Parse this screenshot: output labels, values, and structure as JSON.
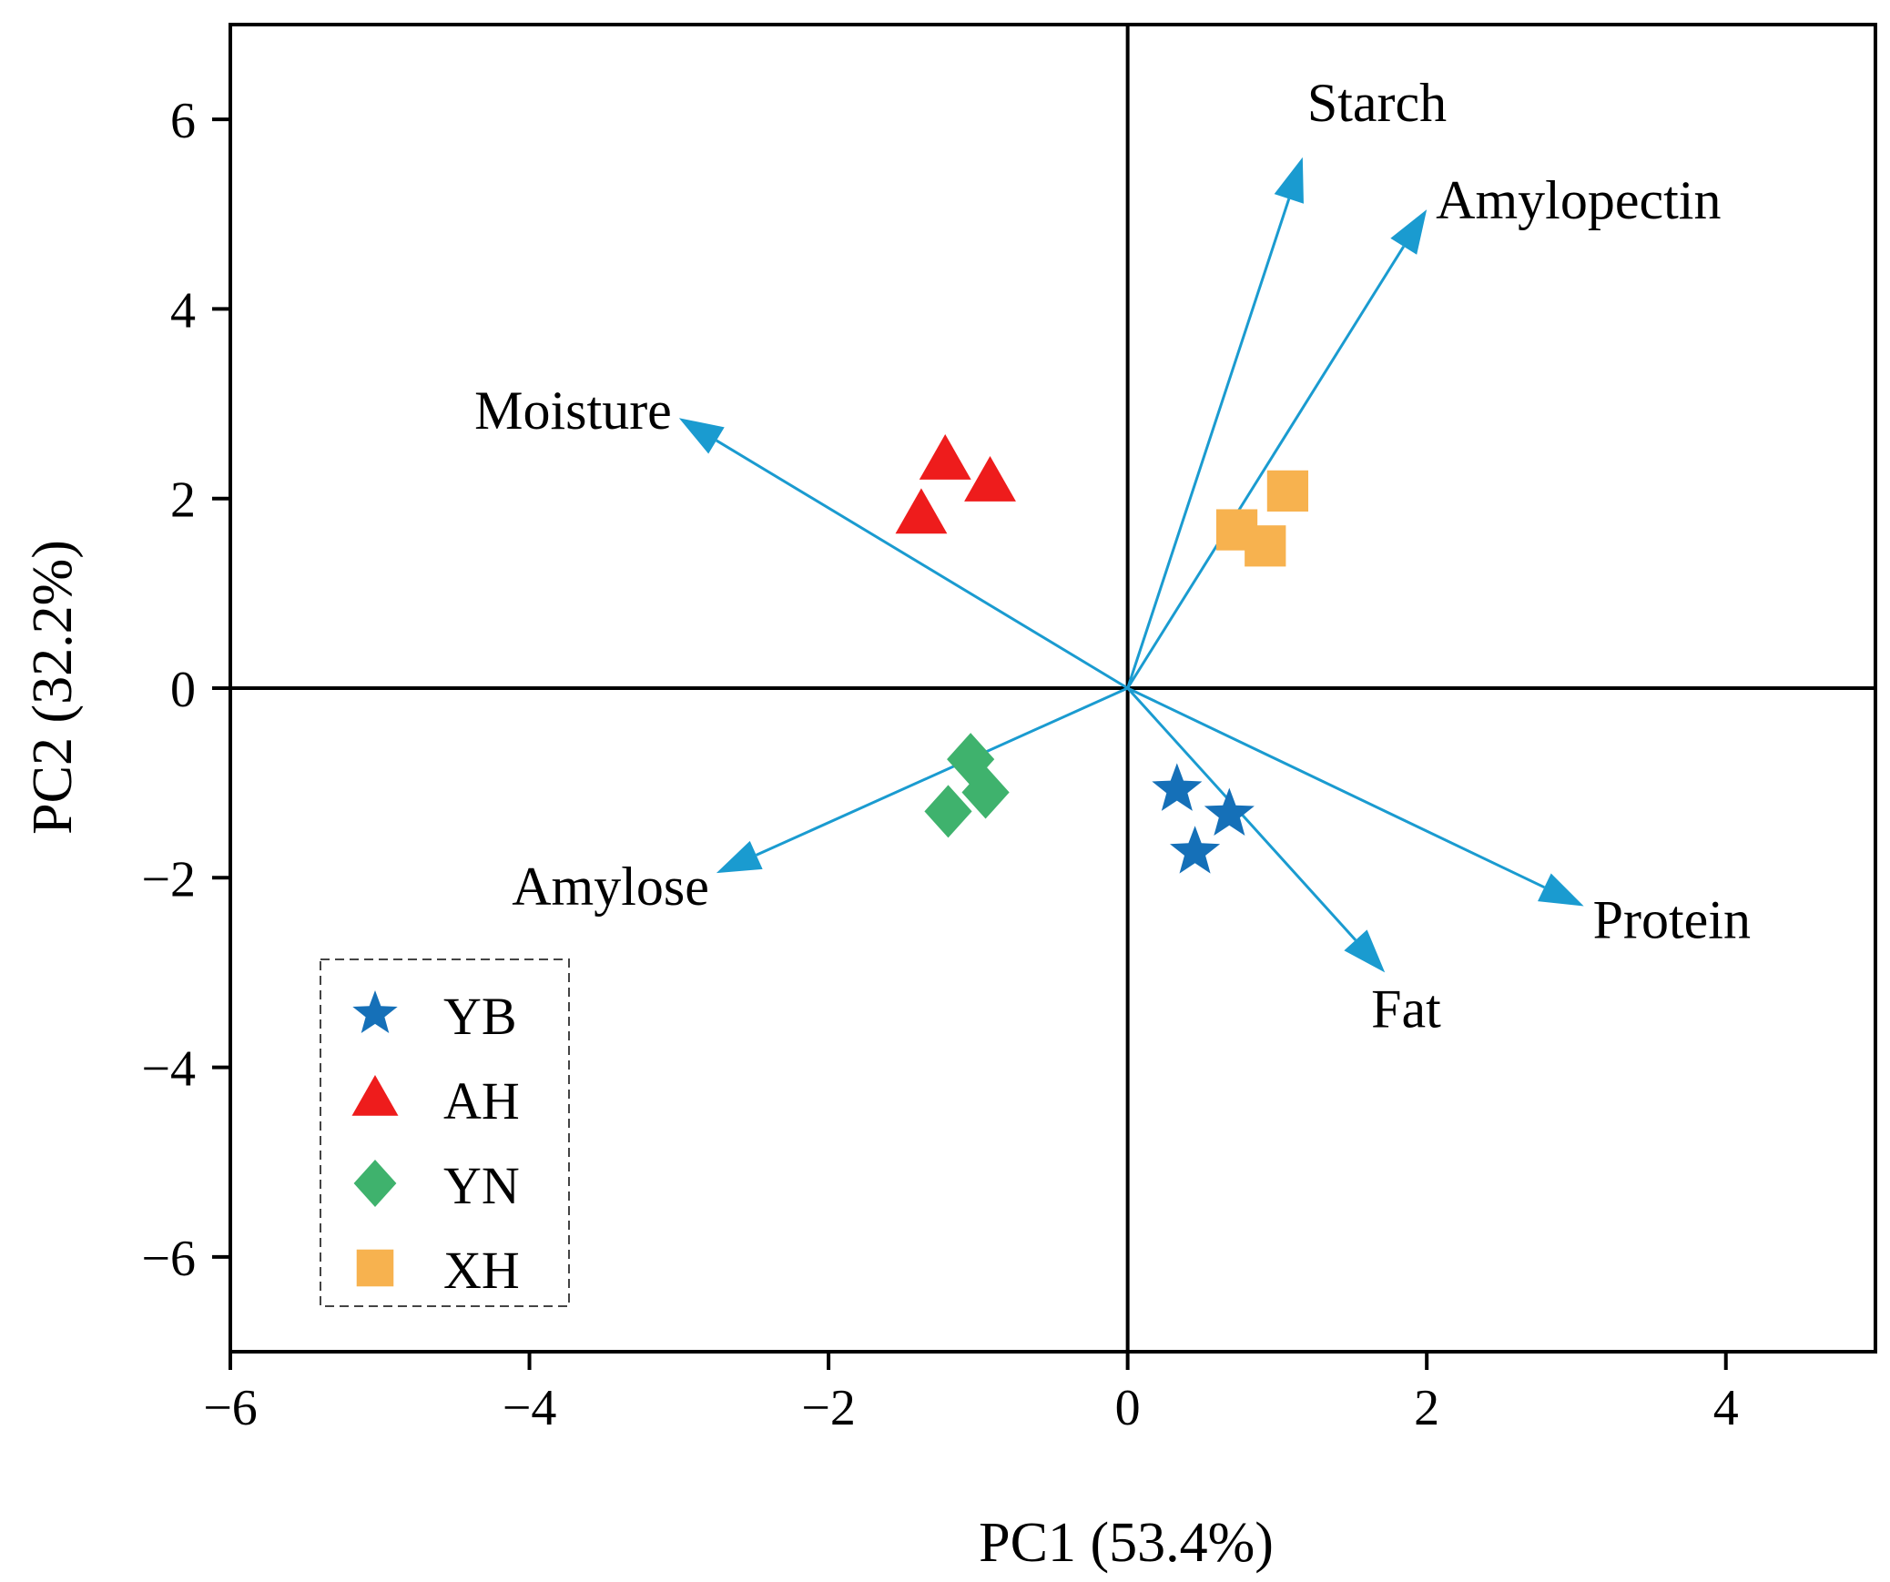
{
  "chart_data": {
    "type": "scatter",
    "subtype": "pca-biplot",
    "title": "",
    "xlabel": "PC1 (53.4%)",
    "ylabel": "PC2 (32.2%)",
    "xlim": [
      -6,
      5
    ],
    "ylim": [
      -7,
      7
    ],
    "xticks": [
      -6,
      -4,
      -2,
      0,
      2,
      4
    ],
    "yticks": [
      -6,
      -4,
      -2,
      0,
      2,
      4,
      6
    ],
    "xtick_labels": [
      "−6",
      "−4",
      "−2",
      "0",
      "2",
      "4"
    ],
    "ytick_labels": [
      "−6",
      "−4",
      "−2",
      "0",
      "2",
      "4",
      "6"
    ],
    "grid": false,
    "reference_lines": {
      "x": 0,
      "y": 0
    },
    "loadings_color": "#1a9bd0",
    "loadings": [
      {
        "name": "Starch",
        "x": 1.17,
        "y": 5.6
      },
      {
        "name": "Amylopectin",
        "x": 2.0,
        "y": 5.05
      },
      {
        "name": "Moisture",
        "x": -3.0,
        "y": 2.85
      },
      {
        "name": "Amylose",
        "x": -2.75,
        "y": -1.95
      },
      {
        "name": "Protein",
        "x": 3.05,
        "y": -2.3
      },
      {
        "name": "Fat",
        "x": 1.72,
        "y": -3.0
      }
    ],
    "legend_position": "bottom-left",
    "series": [
      {
        "name": "YB",
        "marker": "star",
        "color": "#1570b8",
        "points": [
          [
            0.33,
            -1.07
          ],
          [
            0.68,
            -1.33
          ],
          [
            0.45,
            -1.73
          ]
        ]
      },
      {
        "name": "AH",
        "marker": "triangle",
        "color": "#ee1c1c",
        "points": [
          [
            -1.22,
            2.4
          ],
          [
            -0.92,
            2.17
          ],
          [
            -1.38,
            1.83
          ]
        ]
      },
      {
        "name": "YN",
        "marker": "diamond",
        "color": "#3fb26d",
        "points": [
          [
            -1.05,
            -0.75
          ],
          [
            -0.95,
            -1.1
          ],
          [
            -1.2,
            -1.3
          ]
        ]
      },
      {
        "name": "XH",
        "marker": "square",
        "color": "#f7b24f",
        "points": [
          [
            1.07,
            2.08
          ],
          [
            0.73,
            1.67
          ],
          [
            0.92,
            1.5
          ]
        ]
      }
    ]
  }
}
